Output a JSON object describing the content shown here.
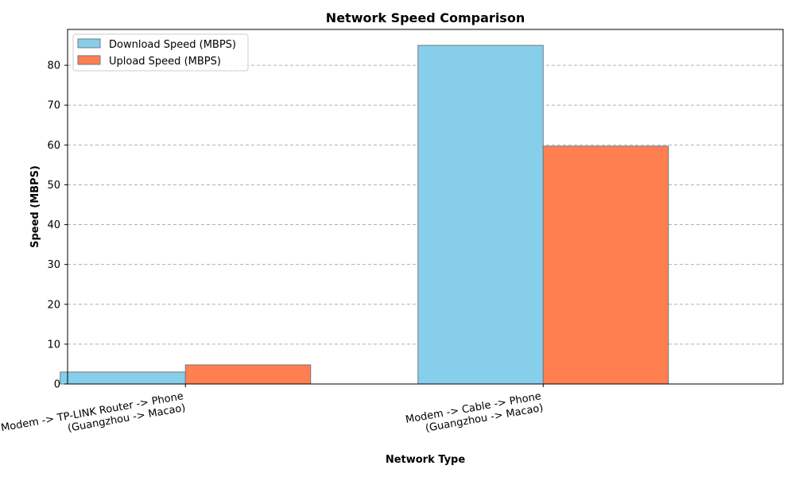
{
  "chart_data": {
    "type": "bar",
    "title": "Network Speed Comparison",
    "xlabel": "Network Type",
    "ylabel": "Speed (MBPS)",
    "ylim": [
      0,
      89
    ],
    "yticks": [
      0,
      10,
      20,
      30,
      40,
      50,
      60,
      70,
      80
    ],
    "grid": true,
    "legend_position": "top-left",
    "categories": [
      [
        "Modem -> TP-LINK Router -> Phone",
        "(Guangzhou -> Macao)"
      ],
      [
        "Modem -> Cable -> Phone",
        "(Guangzhou -> Macao)"
      ]
    ],
    "series": [
      {
        "name": "Download Speed (MBPS)",
        "color": "#87CEEB",
        "values": [
          3,
          85
        ]
      },
      {
        "name": "Upload Speed (MBPS)",
        "color": "#FF7F50",
        "values": [
          4.8,
          59.7
        ]
      }
    ]
  }
}
